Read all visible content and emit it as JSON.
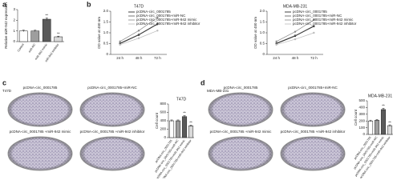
{
  "panel_labels": [
    "a",
    "b",
    "c",
    "d"
  ],
  "images": [
    {
      "cell_line": "T47D",
      "captions": [
        "pcDNA-circ_0001785",
        "pcDNA-circ_0001785+miR-NC",
        "pcDNA-circ_0001785 +miR-942 mimic",
        "pcDNA-circ_0001785 +miR-942 inhibitor"
      ]
    },
    {
      "cell_line": "MDA-MB-231",
      "captions": [
        "pcDNA-circ_0001785",
        "pcDNA-circ_0001785+miR-NC",
        "pcDNA-circ_0001785 +miR-942 mimic",
        "pcDNA-circ_0001785 +miR-942 inhibitor"
      ]
    }
  ],
  "chart_data": [
    {
      "type": "bar",
      "ylabel": "Relative miR-942 expression",
      "categories": [
        "Control",
        "miR-NC",
        "miR-942 mimic",
        "miR-942 inhibitor"
      ],
      "values": [
        1.0,
        1.0,
        2.1,
        0.45
      ],
      "errors": [
        0.08,
        0.07,
        0.12,
        0.06
      ],
      "colors": [
        "#ffffff",
        "#9e9e9e",
        "#5a5a5a",
        "#d9d9d9"
      ],
      "significance": [
        null,
        null,
        "**",
        "**"
      ],
      "ylim": [
        0,
        3
      ],
      "yticks": [
        0,
        1,
        2,
        3
      ]
    },
    {
      "type": "line",
      "title": "T47D",
      "ylabel": "OD value at 450 nm",
      "categories": [
        "24 h",
        "48 h",
        "72 h"
      ],
      "series": [
        {
          "name": "pcDNA-circ_0001785",
          "color": "#111111",
          "values": [
            0.5,
            0.9,
            1.4
          ]
        },
        {
          "name": "pcDNA-circ_0001785+miR-NC",
          "color": "#555555",
          "values": [
            0.52,
            0.92,
            1.42
          ]
        },
        {
          "name": "pcDNA-circ_0001785+miR-942 mimic",
          "color": "#888888",
          "values": [
            0.6,
            1.1,
            1.7
          ]
        },
        {
          "name": "pcDNA-circ_0001785+miR-942 inhibitor",
          "color": "#bbbbbb",
          "values": [
            0.45,
            0.75,
            1.1
          ]
        }
      ],
      "ylim": [
        0,
        2
      ],
      "yticks": [
        0,
        0.5,
        {
          "value": 1,
          "label": "1.0"
        },
        1.5,
        {
          "value": 2,
          "label": "2.0"
        }
      ]
    },
    {
      "type": "line",
      "title": "MDA-MB-231",
      "ylabel": "OD value at 450 nm",
      "categories": [
        "24 h",
        "48 h",
        "72 h"
      ],
      "series": [
        {
          "name": "pcDNA-circ_0001785",
          "color": "#111111",
          "values": [
            0.5,
            0.85,
            1.3
          ]
        },
        {
          "name": "pcDNA-circ_0001785+miR-NC",
          "color": "#555555",
          "values": [
            0.52,
            0.87,
            1.32
          ]
        },
        {
          "name": "pcDNA-circ_0001785+miR-942 mimic",
          "color": "#888888",
          "values": [
            0.6,
            1.05,
            1.6
          ]
        },
        {
          "name": "pcDNA-circ_0001785+miR-942 inhibitor",
          "color": "#bbbbbb",
          "values": [
            0.45,
            0.7,
            1.0
          ]
        }
      ],
      "ylim": [
        0,
        2
      ],
      "yticks": [
        0,
        0.5,
        {
          "value": 1,
          "label": "1.0"
        },
        1.5,
        {
          "value": 2,
          "label": "2.0"
        }
      ]
    },
    {
      "type": "bar",
      "title": "T47D",
      "ylabel": "Cell count",
      "categories": [
        "pcDNA-circ_0001785",
        "pcDNA-circ_0001785+miR-NC",
        "pcDNA-circ_0001785+miR-942 mimic",
        "pcDNA-circ_0001785+miR-942 inhibitor"
      ],
      "values": [
        400,
        400,
        500,
        280
      ],
      "errors": [
        20,
        20,
        25,
        20
      ],
      "colors": [
        "#ffffff",
        "#9e9e9e",
        "#5a5a5a",
        "#d9d9d9"
      ],
      "significance": [
        null,
        null,
        "**",
        "**"
      ],
      "ylim": [
        0,
        800
      ],
      "yticks": [
        0,
        200,
        400,
        600,
        800
      ]
    },
    {
      "type": "bar",
      "title": "MDA-MB-231",
      "ylabel": "Cell count",
      "categories": [
        "pcDNA-circ_0001785",
        "pcDNA-circ_0001785+miR-NC",
        "pcDNA-circ_0001785+miR-942 mimic",
        "pcDNA-circ_0001785+miR-942 inhibitor"
      ],
      "values": [
        200,
        210,
        370,
        130
      ],
      "errors": [
        12,
        12,
        20,
        12
      ],
      "colors": [
        "#ffffff",
        "#9e9e9e",
        "#5a5a5a",
        "#d9d9d9"
      ],
      "significance": [
        null,
        null,
        "**",
        "**"
      ],
      "ylim": [
        0,
        500
      ],
      "yticks": [
        0,
        100,
        200,
        300,
        400,
        500
      ]
    }
  ]
}
